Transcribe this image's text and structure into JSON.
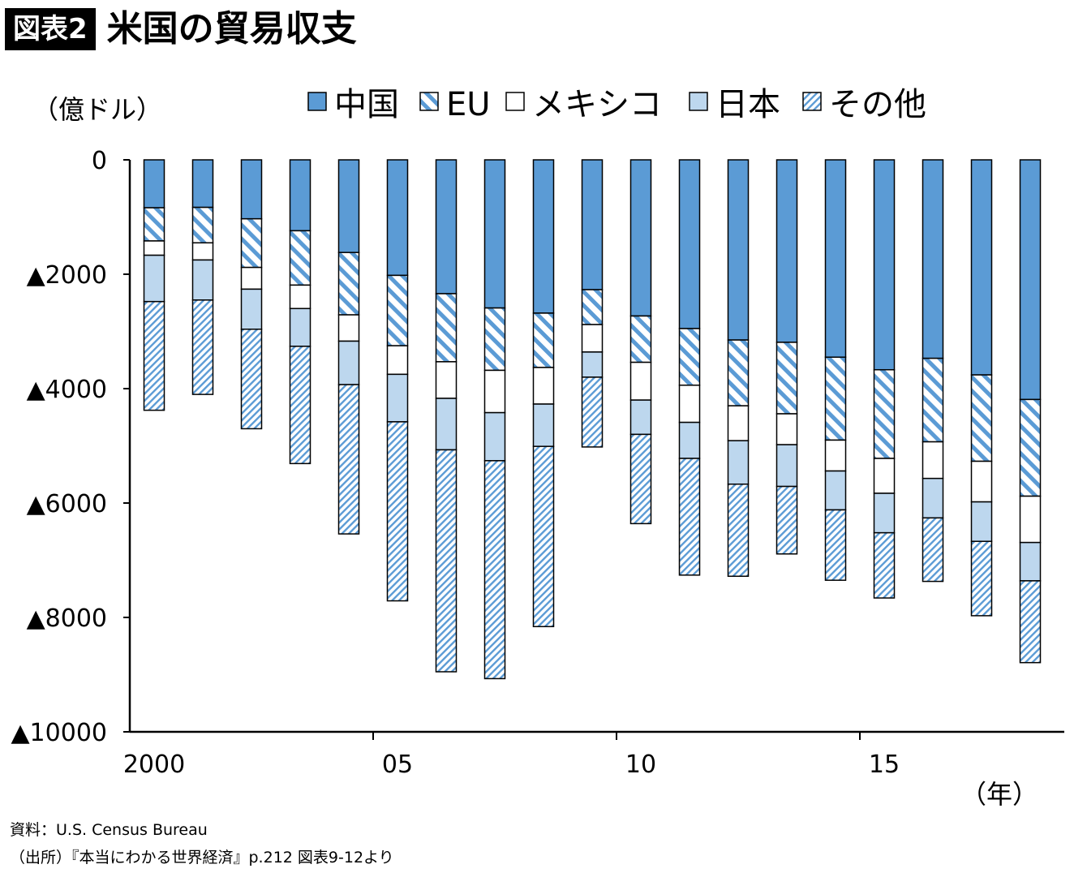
{
  "figure": {
    "badge": "図表2",
    "title": "米国の貿易収支"
  },
  "chart_data": {
    "type": "bar",
    "stacked": true,
    "unit_label": "（億ドル）",
    "x_unit_label": "（年）",
    "x": [
      2000,
      2001,
      2002,
      2003,
      2004,
      2005,
      2006,
      2007,
      2008,
      2009,
      2010,
      2011,
      2012,
      2013,
      2014,
      2015,
      2016,
      2017,
      2018
    ],
    "x_tick_labels": [
      {
        "x": 2000,
        "label": "2000"
      },
      {
        "x": 2005,
        "label": "05"
      },
      {
        "x": 2010,
        "label": "10"
      },
      {
        "x": 2015,
        "label": "15"
      }
    ],
    "ylim": [
      -10000,
      0
    ],
    "y_ticks": [
      {
        "value": 0,
        "label": "0"
      },
      {
        "value": -2000,
        "label": "▲2000"
      },
      {
        "value": -4000,
        "label": "▲4000"
      },
      {
        "value": -6000,
        "label": "▲6000"
      },
      {
        "value": -8000,
        "label": "▲8000"
      },
      {
        "value": -10000,
        "label": "▲10000"
      }
    ],
    "legend_position": "top",
    "series": [
      {
        "name": "中国",
        "style": "solid",
        "color": "#5b9bd5",
        "values": [
          -838,
          -831,
          -1031,
          -1240,
          -1620,
          -2020,
          -2340,
          -2590,
          -2680,
          -2270,
          -2730,
          -2950,
          -3150,
          -3190,
          -3450,
          -3670,
          -3470,
          -3760,
          -4190
        ]
      },
      {
        "name": "EU",
        "style": "diagonal",
        "color": "#5b9bd5",
        "values": [
          -580,
          -620,
          -850,
          -950,
          -1090,
          -1230,
          -1190,
          -1090,
          -950,
          -610,
          -810,
          -990,
          -1150,
          -1250,
          -1450,
          -1550,
          -1460,
          -1510,
          -1690
        ]
      },
      {
        "name": "メキシコ",
        "style": "white",
        "color": "#ffffff",
        "values": [
          -250,
          -300,
          -380,
          -410,
          -460,
          -500,
          -640,
          -740,
          -640,
          -480,
          -660,
          -650,
          -610,
          -540,
          -540,
          -610,
          -640,
          -710,
          -810
        ]
      },
      {
        "name": "日本",
        "style": "light",
        "color": "#bdd7ee",
        "values": [
          -810,
          -700,
          -700,
          -660,
          -760,
          -830,
          -900,
          -840,
          -740,
          -440,
          -600,
          -630,
          -760,
          -730,
          -680,
          -690,
          -690,
          -690,
          -670
        ]
      },
      {
        "name": "その他",
        "style": "dotted-diagonal",
        "color": "#5b9bd5",
        "values": [
          -1900,
          -1650,
          -1740,
          -2050,
          -2610,
          -3130,
          -3880,
          -3810,
          -3150,
          -1220,
          -1560,
          -2040,
          -1610,
          -1180,
          -1230,
          -1140,
          -1110,
          -1300,
          -1430
        ]
      }
    ]
  },
  "footer": {
    "source": "資料：U.S. Census Bureau",
    "citation": "（出所）『本当にわかる世界経済』p.212 図表9-12より"
  }
}
